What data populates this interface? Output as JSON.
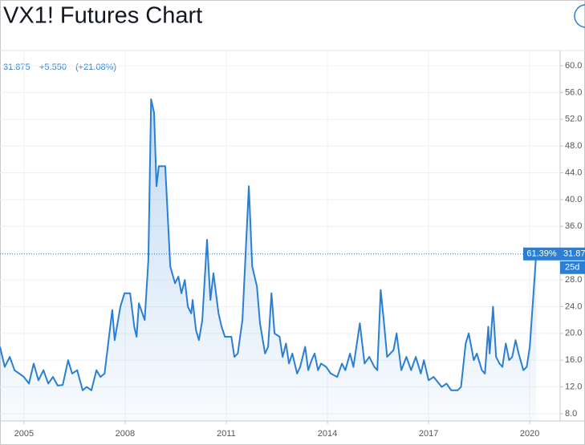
{
  "chart_data": {
    "type": "area-line",
    "title": "VX1! Futures Chart",
    "change": "+5.550",
    "change_percent": "(+21.08%)",
    "period_change": "61.39%",
    "countdown": "25d",
    "color": "#2a7fd4",
    "grid": true,
    "xlim": [
      2004.29,
      2020.9
    ],
    "xticks": [
      2005,
      2008,
      2011,
      2014,
      2017,
      2020
    ],
    "ylim": [
      6.92,
      62.04
    ],
    "yticks": [
      {
        "value": 60,
        "label": "60.0"
      },
      {
        "value": 56,
        "label": "56.0"
      },
      {
        "value": 52,
        "label": "52.0"
      },
      {
        "value": 48,
        "label": "48.0"
      },
      {
        "value": 44,
        "label": "44.0"
      },
      {
        "value": 40,
        "label": "40.0"
      },
      {
        "value": 36,
        "label": "36.0"
      },
      {
        "value": 28,
        "label": "28.0"
      },
      {
        "value": 24,
        "label": "24.0"
      },
      {
        "value": 20,
        "label": "20.0"
      },
      {
        "value": 16,
        "label": "16.0"
      },
      {
        "value": 12,
        "label": "12.0"
      },
      {
        "value": 8,
        "label": "8.0"
      }
    ],
    "x": [
      2004.29,
      2004.43,
      2004.58,
      2004.72,
      2005.0,
      2005.15,
      2005.29,
      2005.43,
      2005.58,
      2005.72,
      2005.86,
      2006.0,
      2006.15,
      2006.31,
      2006.43,
      2006.58,
      2006.74,
      2006.86,
      2007.0,
      2007.15,
      2007.27,
      2007.39,
      2007.62,
      2007.69,
      2007.86,
      2007.98,
      2008.15,
      2008.27,
      2008.34,
      2008.41,
      2008.58,
      2008.69,
      2008.77,
      2008.86,
      2008.93,
      2009.0,
      2009.19,
      2009.34,
      2009.48,
      2009.58,
      2009.67,
      2009.77,
      2009.86,
      2009.96,
      2010.0,
      2010.1,
      2010.19,
      2010.29,
      2010.43,
      2010.53,
      2010.62,
      2010.77,
      2010.86,
      2010.96,
      2011.15,
      2011.24,
      2011.34,
      2011.48,
      2011.67,
      2011.77,
      2011.91,
      2012.0,
      2012.15,
      2012.24,
      2012.34,
      2012.43,
      2012.58,
      2012.67,
      2012.77,
      2012.86,
      2012.96,
      2013.1,
      2013.19,
      2013.34,
      2013.43,
      2013.53,
      2013.62,
      2013.72,
      2013.81,
      2013.96,
      2014.1,
      2014.29,
      2014.43,
      2014.53,
      2014.67,
      2014.77,
      2014.96,
      2015.1,
      2015.24,
      2015.39,
      2015.48,
      2015.58,
      2015.67,
      2015.77,
      2015.96,
      2016.05,
      2016.19,
      2016.34,
      2016.48,
      2016.62,
      2016.77,
      2016.86,
      2017.0,
      2017.15,
      2017.39,
      2017.53,
      2017.67,
      2017.86,
      2017.96,
      2018.1,
      2018.19,
      2018.34,
      2018.43,
      2018.58,
      2018.67,
      2018.77,
      2018.81,
      2018.91,
      2019.0,
      2019.1,
      2019.19,
      2019.29,
      2019.39,
      2019.48,
      2019.58,
      2019.67,
      2019.81,
      2019.91,
      2020.0,
      2020.19
    ],
    "series": [
      {
        "name": "VX1!",
        "color": "#2a7fd4",
        "values": [
          18,
          15,
          16.5,
          14.5,
          13.5,
          12.5,
          15.5,
          13,
          14.5,
          12.5,
          13.5,
          12.2,
          12.3,
          16,
          14,
          14.5,
          11.5,
          12,
          11.5,
          14.5,
          13.5,
          14,
          23.5,
          19,
          24,
          26,
          26,
          21,
          19.5,
          24.5,
          22,
          31,
          55,
          53,
          42,
          45,
          45,
          30,
          27.5,
          28.5,
          26,
          28,
          24,
          23,
          25,
          20.5,
          19,
          22,
          34,
          25,
          29,
          23,
          21,
          19.5,
          19.5,
          16.5,
          17,
          22,
          42,
          30,
          27,
          21.5,
          17,
          18,
          26,
          20,
          19.5,
          16.5,
          18.5,
          15.5,
          17,
          14,
          15,
          18,
          14.5,
          16,
          17,
          14.5,
          15.5,
          15,
          14,
          13.5,
          15.5,
          14.5,
          17,
          15,
          21.5,
          15.5,
          16.5,
          15,
          14.5,
          26.5,
          22,
          16.5,
          17.5,
          20,
          14.5,
          16.5,
          14.5,
          16.5,
          14,
          16,
          13,
          13.5,
          12,
          12.5,
          11.5,
          11.5,
          12,
          18.5,
          20,
          16,
          17,
          14.5,
          14,
          21,
          17,
          24,
          16.5,
          15.5,
          15,
          18.5,
          16,
          16.5,
          19,
          17,
          14.5,
          15,
          18,
          31.875
        ]
      }
    ]
  }
}
